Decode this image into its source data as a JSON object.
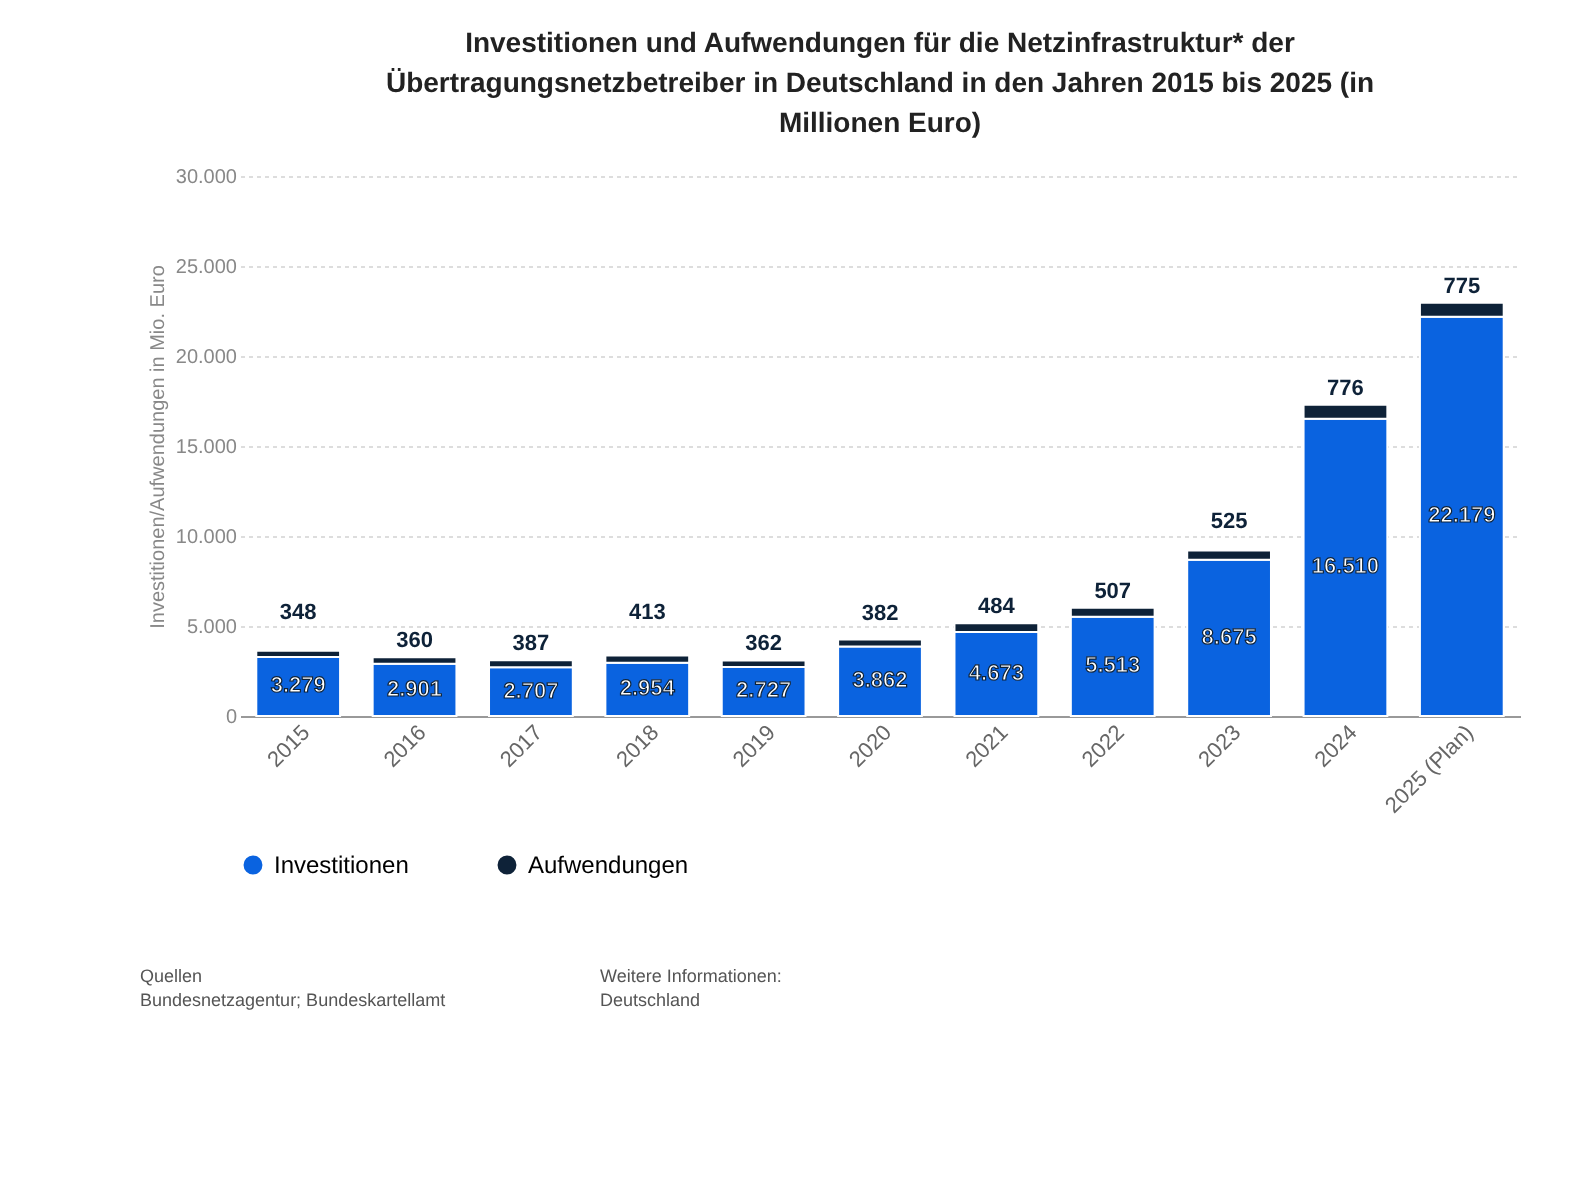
{
  "chart_data": {
    "type": "bar",
    "stacked": true,
    "title": "Investitionen und Aufwendungen für die Netzinfrastruktur* der Übertragungsnetzbetreiber in Deutschland in den Jahren 2015 bis 2025 (in Millionen Euro)",
    "ylabel": "Investitionen/Aufwendungen in Mio. Euro",
    "categories": [
      "2015",
      "2016",
      "2017",
      "2018",
      "2019",
      "2020",
      "2021",
      "2022",
      "2023",
      "2024",
      "2025 (Plan)"
    ],
    "series": [
      {
        "name": "Investitionen",
        "color": "#0a63e0",
        "values": [
          3279,
          2901,
          2707,
          2954,
          2727,
          3862,
          4673,
          5513,
          8675,
          16510,
          22179
        ],
        "value_labels": [
          "3.279",
          "2.901",
          "2.707",
          "2.954",
          "2.727",
          "3.862",
          "4.673",
          "5.513",
          "8.675",
          "16.510",
          "22.179"
        ]
      },
      {
        "name": "Aufwendungen",
        "color": "#0e2238",
        "values": [
          348,
          360,
          387,
          413,
          362,
          382,
          484,
          507,
          525,
          776,
          775
        ],
        "value_labels": [
          "348",
          "360",
          "387",
          "413",
          "362",
          "382",
          "484",
          "507",
          "525",
          "776",
          "775"
        ]
      }
    ],
    "ylim": [
      0,
      30000
    ],
    "yticks": [
      0,
      {
        "value": 5000,
        "label": "5.000"
      },
      {
        "value": 10000,
        "label": "10.000"
      },
      {
        "value": 15000,
        "label": "15.000"
      },
      {
        "value": 20000,
        "label": "20.000"
      },
      {
        "value": 25000,
        "label": "25.000"
      },
      {
        "value": 30000,
        "label": "30.000"
      }
    ],
    "grid": "y",
    "legend": "bottom",
    "annotations": [
      "Quellen",
      "Bundesnetzagentur; Bundeskartellamt",
      "Weitere Informationen:",
      "Deutschland"
    ]
  }
}
